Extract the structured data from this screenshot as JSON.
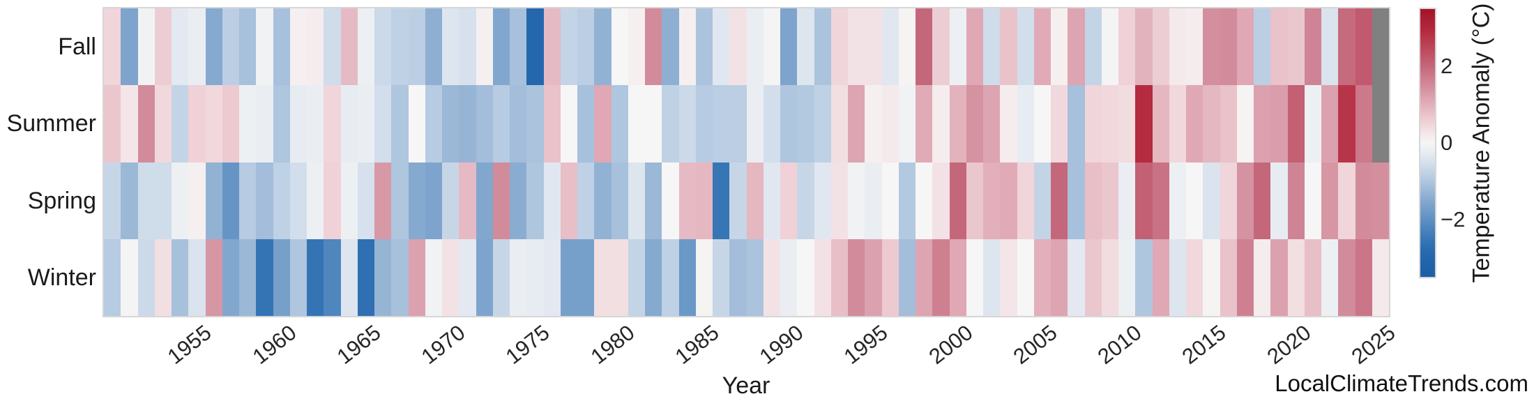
{
  "watermark": "LocalClimateTrends.com",
  "style": {
    "background": "#ffffff",
    "text_color": "#262626",
    "axes_edge_color": "#d6d6d6"
  },
  "chart_data": {
    "type": "heatmap",
    "title": "",
    "xlabel": "Year",
    "ylabel": "",
    "grid": false,
    "legend_position": "right-colorbar",
    "x": [
      1950,
      1951,
      1952,
      1953,
      1954,
      1955,
      1956,
      1957,
      1958,
      1959,
      1960,
      1961,
      1962,
      1963,
      1964,
      1965,
      1966,
      1967,
      1968,
      1969,
      1970,
      1971,
      1972,
      1973,
      1974,
      1975,
      1976,
      1977,
      1978,
      1979,
      1980,
      1981,
      1982,
      1983,
      1984,
      1985,
      1986,
      1987,
      1988,
      1989,
      1990,
      1991,
      1992,
      1993,
      1994,
      1995,
      1996,
      1997,
      1998,
      1999,
      2000,
      2001,
      2002,
      2003,
      2004,
      2005,
      2006,
      2007,
      2008,
      2009,
      2010,
      2011,
      2012,
      2013,
      2014,
      2015,
      2016,
      2017,
      2018,
      2019,
      2020,
      2021,
      2022,
      2023,
      2024,
      2025
    ],
    "x_ticks": [
      1955,
      1960,
      1965,
      1970,
      1975,
      1980,
      1985,
      1990,
      1995,
      2000,
      2005,
      2010,
      2015,
      2020,
      2025
    ],
    "x_tick_labels": [
      "1955",
      "1960",
      "1965",
      "1970",
      "1975",
      "1980",
      "1985",
      "1990",
      "1995",
      "2000",
      "2005",
      "2010",
      "2015",
      "2020",
      "2025"
    ],
    "rows": [
      "Fall",
      "Summer",
      "Spring",
      "Winter"
    ],
    "series": [
      {
        "name": "Fall",
        "values": [
          0.5,
          -1.6,
          -0.1,
          0.6,
          -0.3,
          -0.2,
          -1.5,
          -0.85,
          -1.1,
          -0.1,
          -1.1,
          0.1,
          0.15,
          -0.6,
          0.85,
          -0.15,
          -0.65,
          -0.8,
          -0.85,
          -1.4,
          -0.4,
          -0.5,
          0.1,
          -1.55,
          -1.1,
          -2.9,
          0.85,
          -0.75,
          -0.85,
          -1.35,
          0,
          0.1,
          1.5,
          -1.4,
          0.1,
          -1.05,
          -0.35,
          0.3,
          -0.2,
          -0.05,
          -1.6,
          -0.4,
          -1.05,
          0.5,
          0.3,
          0.3,
          -0.35,
          0.05,
          2.0,
          0.6,
          -0.15,
          1.1,
          -0.6,
          0.75,
          -0.55,
          1.05,
          0.1,
          1.15,
          -0.75,
          -0.05,
          0.55,
          0.95,
          0.6,
          0.2,
          0.15,
          1.45,
          1.5,
          1.1,
          -0.85,
          0.75,
          0.7,
          1.6,
          -0.45,
          1.95,
          2.2,
          null
        ]
      },
      {
        "name": "Summer",
        "values": [
          0.7,
          0.25,
          1.5,
          0.45,
          -0.75,
          0.55,
          0.45,
          0.65,
          -0.15,
          -0.2,
          -1.0,
          -0.25,
          -0.2,
          0.5,
          -0.25,
          -0.2,
          -0.55,
          -1.0,
          0,
          -0.9,
          -1.25,
          -1.3,
          -1.15,
          -0.9,
          -1.15,
          -1.05,
          0.75,
          0,
          -1.1,
          1.1,
          -1.0,
          0,
          0,
          -0.8,
          -0.65,
          -0.9,
          -0.85,
          -0.85,
          -0.2,
          -0.55,
          -1.0,
          -0.95,
          -0.8,
          0.35,
          1.15,
          0.1,
          0.2,
          -0.1,
          1.05,
          0.15,
          0.95,
          1.4,
          1.15,
          0.15,
          -0.25,
          0,
          0.45,
          -1.1,
          0.5,
          0.45,
          0.4,
          2.9,
          0.9,
          0.45,
          1.1,
          0.9,
          0.75,
          0.05,
          1.2,
          1.25,
          2.1,
          -0.15,
          1.2,
          2.75,
          1.75,
          null
        ]
      },
      {
        "name": "Spring",
        "values": [
          -0.7,
          -1.25,
          -0.6,
          -0.6,
          -0.15,
          0.1,
          -1.35,
          -1.9,
          -0.9,
          -1.15,
          -0.8,
          -0.55,
          -0.15,
          0.55,
          -0.15,
          -0.5,
          1.3,
          -1.0,
          -1.5,
          -1.6,
          -0.7,
          0.85,
          -1.55,
          1.5,
          -1.45,
          -1.0,
          -0.35,
          0.8,
          -0.8,
          -1.35,
          -1.1,
          -0.4,
          -1.25,
          0,
          0.85,
          0.9,
          -2.55,
          -0.7,
          0.9,
          -0.35,
          0.55,
          -0.7,
          -0.35,
          0.3,
          -0.1,
          -0.2,
          0,
          -0.95,
          0,
          0.3,
          2.0,
          0.7,
          1.0,
          1.05,
          0.5,
          -0.75,
          2.0,
          -1.1,
          0.8,
          0.7,
          -0.2,
          2.1,
          1.85,
          -0.15,
          0,
          -0.45,
          0.5,
          1.4,
          2.0,
          -0.25,
          1.6,
          0,
          1.35,
          0.5,
          1.5,
          1.45
        ]
      },
      {
        "name": "Winter",
        "values": [
          -0.9,
          -0.05,
          -0.65,
          0.35,
          -1.1,
          -0.45,
          1.35,
          -1.55,
          -1.25,
          -2.6,
          -1.7,
          -1.0,
          -2.6,
          -2.2,
          -0.4,
          -2.7,
          -1.3,
          -1.1,
          1.2,
          -0.1,
          0.3,
          -0.3,
          -1.6,
          -0.7,
          -0.2,
          -0.25,
          -0.3,
          -1.7,
          -1.7,
          0.35,
          0.35,
          -0.75,
          -1.5,
          -0.8,
          -1.85,
          0.05,
          -0.7,
          -1.15,
          -1.05,
          0.3,
          -0.2,
          0,
          0.3,
          0.8,
          1.5,
          1.2,
          0.65,
          -1.15,
          1.15,
          1.65,
          1.1,
          0,
          -0.4,
          0.25,
          0,
          1.0,
          1.15,
          -0.3,
          0.7,
          0.4,
          -0.15,
          -1.0,
          1.1,
          -0.4,
          0.45,
          0.05,
          0.75,
          1.65,
          0.15,
          1.2,
          0.35,
          0.8,
          -0.15,
          1.5,
          1.8,
          0.2
        ]
      }
    ],
    "colorbar": {
      "label": "Temperature Anomaly (°C)",
      "ticks": [
        2,
        0,
        -2
      ],
      "tick_labels": [
        "2",
        "0",
        "−2"
      ],
      "vmin": -3.5,
      "vmax": 3.5
    },
    "colormap": {
      "missing_color": "#808080",
      "anchors": [
        {
          "v": -3.5,
          "c": "#1d5fa7"
        },
        {
          "v": -2.9,
          "c": "#2467ad"
        },
        {
          "v": -2.5,
          "c": "#3a78b6"
        },
        {
          "v": -2.0,
          "c": "#5e90c3"
        },
        {
          "v": -1.5,
          "c": "#86a9cf"
        },
        {
          "v": -1.0,
          "c": "#afc6df"
        },
        {
          "v": -0.5,
          "c": "#d7e1ed"
        },
        {
          "v": 0.0,
          "c": "#f7f6f6"
        },
        {
          "v": 0.5,
          "c": "#f0d5da"
        },
        {
          "v": 1.0,
          "c": "#e2afba"
        },
        {
          "v": 1.5,
          "c": "#d28b9b"
        },
        {
          "v": 2.0,
          "c": "#c5677b"
        },
        {
          "v": 2.9,
          "c": "#b52b3f"
        },
        {
          "v": 3.5,
          "c": "#a31328"
        }
      ]
    }
  }
}
